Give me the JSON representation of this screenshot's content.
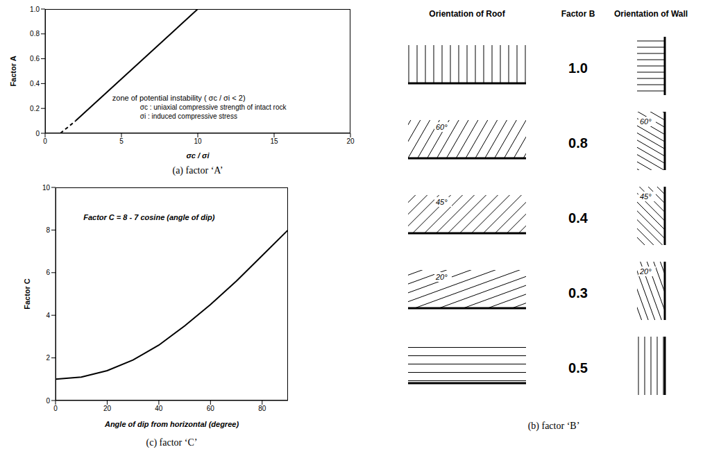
{
  "chart_data": [
    {
      "type": "line",
      "caption": "(a) factor ‘A’",
      "y_label": "Factor A",
      "x_label": "σc / σi",
      "xlim": [
        0,
        20
      ],
      "xticks": [
        0,
        5,
        10,
        15,
        20
      ],
      "ylim": [
        0,
        1
      ],
      "yticks": [
        0,
        0.2,
        0.4,
        0.6,
        0.8,
        {
          "value": 1,
          "label": "1.0"
        }
      ],
      "series": [
        {
          "x": [
            2,
            10,
            20
          ],
          "values": [
            0.1,
            1,
            1
          ],
          "color": "#000000",
          "line_style": "solid"
        },
        {
          "x": [
            1,
            2
          ],
          "values": [
            0,
            0.1
          ],
          "color": "#000000",
          "line_style": "dashed"
        }
      ],
      "annotations": [
        "zone of potential instability ( σc / σi < 2)",
        "σc : uniaxial compressive strength of intact rock",
        "σi : induced compressive stress"
      ]
    },
    {
      "type": "line",
      "caption": "(c) factor ‘C’",
      "y_label": "Factor C",
      "x_label": "Angle of dip from horizontal (degree)",
      "annotations": [
        "Factor C = 8 - 7 cosine (angle of dip)"
      ],
      "x": [
        0,
        10,
        20,
        30,
        40,
        50,
        60,
        70,
        80,
        90
      ],
      "values": [
        1,
        1.1,
        1.4,
        1.9,
        2.6,
        3.5,
        4.5,
        5.6,
        6.8,
        8
      ],
      "color": "#000000",
      "line_style": "solid",
      "xlim": [
        0,
        90
      ],
      "xticks": [
        0,
        20,
        40,
        60,
        80
      ],
      "ylim": [
        0,
        10
      ],
      "yticks": [
        0,
        2,
        4,
        6,
        8,
        10
      ]
    }
  ],
  "factor_b": {
    "headers": [
      "Orientation of Roof",
      "Factor B",
      "Orientation of Wall"
    ],
    "rows": [
      {
        "factor": "1.0",
        "dip": 90
      },
      {
        "factor": "0.8",
        "dip": {
          "value": 60,
          "label": "60°"
        }
      },
      {
        "factor": "0.4",
        "dip": {
          "value": 45,
          "label": "45°"
        }
      },
      {
        "factor": "0.3",
        "dip": {
          "value": 20,
          "label": "20°"
        }
      },
      {
        "factor": "0.5",
        "dip": 0
      }
    ],
    "caption": "(b) factor ‘B’"
  }
}
